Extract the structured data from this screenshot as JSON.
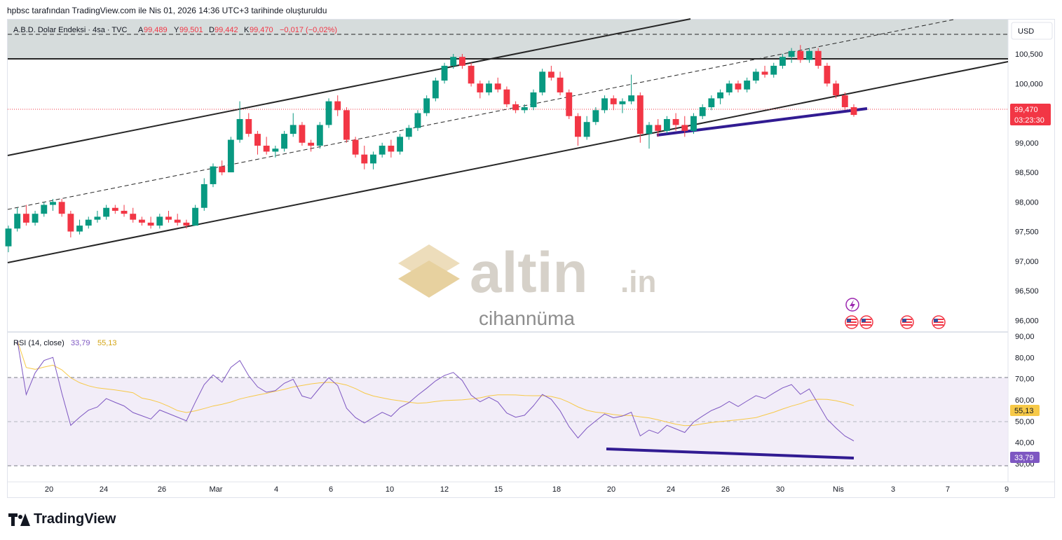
{
  "header": {
    "text": "hpbsc tarafından TradingView.com ile Nis 01, 2026 14:36 UTC+3 tarihinde oluşturuldu"
  },
  "legend": {
    "symbol": "A.B.D. Dolar Endeksi · 4sa · TVC",
    "o_label": "A",
    "o_value": "99,489",
    "h_label": "Y",
    "h_value": "99,501",
    "l_label": "D",
    "l_value": "99,442",
    "c_label": "K",
    "c_value": "99,470",
    "change": "−0,017 (−0,02%)"
  },
  "price_axis": {
    "currency": "USD",
    "ticks": [
      "100,500",
      "100,000",
      "99,500",
      "99,000",
      "98,500",
      "98,000",
      "97,500",
      "97,000",
      "96,500",
      "96,000"
    ],
    "last_price": "99,470",
    "countdown": "03:23:30"
  },
  "rsi": {
    "label": "RSI (14, close)",
    "value1": "33,79",
    "value2": "55,13",
    "ticks": [
      "90,00",
      "80,00",
      "70,00",
      "60,00",
      "50,00",
      "40,00",
      "30,00"
    ],
    "badge_rsi": "33,79",
    "badge_ma": "55,13"
  },
  "x_axis": {
    "ticks": [
      "20",
      "24",
      "26",
      "Mar",
      "4",
      "6",
      "10",
      "12",
      "15",
      "18",
      "20",
      "24",
      "26",
      "30",
      "Nis",
      "3",
      "7",
      "9"
    ]
  },
  "watermark": {
    "brand": "altin",
    "suffix": ".in",
    "sub": "cihannüma"
  },
  "footer": {
    "brand": "TradingView"
  },
  "colors": {
    "up": "#089981",
    "down": "#f23645",
    "rsi": "#7e57c2",
    "rsi_ma": "#f7c948",
    "trendline": "#311b92",
    "channel": "#262626"
  },
  "chart_data": {
    "type": "candlestick",
    "instrument": "A.B.D. Dolar Endeksi",
    "timeframe": "4sa",
    "ylim": [
      95.85,
      101.08
    ],
    "x_ticks": [
      "20",
      "24",
      "26",
      "Mar",
      "4",
      "6",
      "10",
      "12",
      "15",
      "18",
      "20",
      "24",
      "26",
      "30",
      "Nis",
      "3",
      "7",
      "9"
    ],
    "y_ticks": [
      96.0,
      96.5,
      97.0,
      97.5,
      98.0,
      98.5,
      99.0,
      99.5,
      100.0,
      100.5
    ],
    "last_close": 99.47,
    "ohlc_approx": [
      [
        97.25,
        97.6,
        97.15,
        97.55
      ],
      [
        97.55,
        97.9,
        97.5,
        97.8
      ],
      [
        97.8,
        97.95,
        97.6,
        97.65
      ],
      [
        97.65,
        97.85,
        97.6,
        97.8
      ],
      [
        97.8,
        98.0,
        97.75,
        97.95
      ],
      [
        97.95,
        98.05,
        97.85,
        98.0
      ],
      [
        98.0,
        98.05,
        97.75,
        97.8
      ],
      [
        97.8,
        97.85,
        97.4,
        97.5
      ],
      [
        97.5,
        97.7,
        97.45,
        97.6
      ],
      [
        97.6,
        97.75,
        97.55,
        97.7
      ],
      [
        97.7,
        97.85,
        97.65,
        97.75
      ],
      [
        97.75,
        97.95,
        97.7,
        97.9
      ],
      [
        97.9,
        97.95,
        97.8,
        97.85
      ],
      [
        97.85,
        97.95,
        97.75,
        97.8
      ],
      [
        97.8,
        97.9,
        97.65,
        97.7
      ],
      [
        97.7,
        97.75,
        97.6,
        97.65
      ],
      [
        97.65,
        97.75,
        97.55,
        97.6
      ],
      [
        97.6,
        97.8,
        97.55,
        97.75
      ],
      [
        97.75,
        97.85,
        97.65,
        97.7
      ],
      [
        97.7,
        97.8,
        97.6,
        97.65
      ],
      [
        97.65,
        97.7,
        97.55,
        97.6
      ],
      [
        97.6,
        97.95,
        97.6,
        97.9
      ],
      [
        97.9,
        98.4,
        97.85,
        98.3
      ],
      [
        98.3,
        98.65,
        98.25,
        98.6
      ],
      [
        98.6,
        98.7,
        98.45,
        98.5
      ],
      [
        98.5,
        99.1,
        98.5,
        99.05
      ],
      [
        99.05,
        99.7,
        99.0,
        99.4
      ],
      [
        99.4,
        99.5,
        99.1,
        99.15
      ],
      [
        99.15,
        99.2,
        98.8,
        98.95
      ],
      [
        98.95,
        99.1,
        98.8,
        98.85
      ],
      [
        98.85,
        98.95,
        98.75,
        98.9
      ],
      [
        98.9,
        99.2,
        98.85,
        99.15
      ],
      [
        99.15,
        99.5,
        99.1,
        99.3
      ],
      [
        99.3,
        99.35,
        98.95,
        99.0
      ],
      [
        99.0,
        99.05,
        98.85,
        98.95
      ],
      [
        98.95,
        99.35,
        98.9,
        99.3
      ],
      [
        99.3,
        99.75,
        99.25,
        99.7
      ],
      [
        99.7,
        99.8,
        99.45,
        99.55
      ],
      [
        99.55,
        99.6,
        99.0,
        99.05
      ],
      [
        99.05,
        99.1,
        98.75,
        98.8
      ],
      [
        98.8,
        98.95,
        98.55,
        98.65
      ],
      [
        98.65,
        98.85,
        98.55,
        98.8
      ],
      [
        98.8,
        99.0,
        98.75,
        98.95
      ],
      [
        98.95,
        99.05,
        98.75,
        98.85
      ],
      [
        98.85,
        99.15,
        98.8,
        99.1
      ],
      [
        99.1,
        99.3,
        99.05,
        99.25
      ],
      [
        99.25,
        99.55,
        99.2,
        99.5
      ],
      [
        99.5,
        99.8,
        99.45,
        99.75
      ],
      [
        99.75,
        100.1,
        99.7,
        100.05
      ],
      [
        100.05,
        100.35,
        100.0,
        100.3
      ],
      [
        100.3,
        100.5,
        100.25,
        100.45
      ],
      [
        100.45,
        100.5,
        100.25,
        100.3
      ],
      [
        100.3,
        100.35,
        99.95,
        100.0
      ],
      [
        100.0,
        100.05,
        99.75,
        99.85
      ],
      [
        99.85,
        100.05,
        99.8,
        100.0
      ],
      [
        100.0,
        100.1,
        99.85,
        99.9
      ],
      [
        99.9,
        99.95,
        99.6,
        99.65
      ],
      [
        99.65,
        99.7,
        99.5,
        99.55
      ],
      [
        99.55,
        99.65,
        99.5,
        99.6
      ],
      [
        99.6,
        99.9,
        99.55,
        99.85
      ],
      [
        99.85,
        100.25,
        99.8,
        100.2
      ],
      [
        100.2,
        100.3,
        100.05,
        100.1
      ],
      [
        100.1,
        100.2,
        99.8,
        99.85
      ],
      [
        99.85,
        99.9,
        99.4,
        99.45
      ],
      [
        99.45,
        99.5,
        98.95,
        99.1
      ],
      [
        99.1,
        99.45,
        99.05,
        99.35
      ],
      [
        99.35,
        99.6,
        99.3,
        99.55
      ],
      [
        99.55,
        99.8,
        99.5,
        99.75
      ],
      [
        99.75,
        99.8,
        99.55,
        99.65
      ],
      [
        99.65,
        99.75,
        99.5,
        99.7
      ],
      [
        99.7,
        100.15,
        99.65,
        99.8
      ],
      [
        99.8,
        99.85,
        99.0,
        99.15
      ],
      [
        99.15,
        99.35,
        98.9,
        99.3
      ],
      [
        99.3,
        99.4,
        99.1,
        99.2
      ],
      [
        99.2,
        99.45,
        99.15,
        99.4
      ],
      [
        99.4,
        99.5,
        99.2,
        99.3
      ],
      [
        99.3,
        99.45,
        99.1,
        99.2
      ],
      [
        99.2,
        99.5,
        99.15,
        99.45
      ],
      [
        99.45,
        99.65,
        99.4,
        99.6
      ],
      [
        99.6,
        99.8,
        99.55,
        99.75
      ],
      [
        99.75,
        99.9,
        99.65,
        99.85
      ],
      [
        99.85,
        100.05,
        99.8,
        100.0
      ],
      [
        100.0,
        100.05,
        99.85,
        99.9
      ],
      [
        99.9,
        100.1,
        99.85,
        100.05
      ],
      [
        100.05,
        100.25,
        100.0,
        100.2
      ],
      [
        100.2,
        100.3,
        100.1,
        100.15
      ],
      [
        100.15,
        100.35,
        100.1,
        100.3
      ],
      [
        100.3,
        100.5,
        100.25,
        100.45
      ],
      [
        100.45,
        100.6,
        100.35,
        100.55
      ],
      [
        100.55,
        100.65,
        100.35,
        100.4
      ],
      [
        100.4,
        100.6,
        100.35,
        100.55
      ],
      [
        100.55,
        100.6,
        100.25,
        100.3
      ],
      [
        100.3,
        100.35,
        99.95,
        100.0
      ],
      [
        100.0,
        100.05,
        99.75,
        99.8
      ],
      [
        99.8,
        99.85,
        99.55,
        99.6
      ],
      [
        99.6,
        99.65,
        99.44,
        99.47
      ]
    ],
    "trendlines": "ascending channel, dashed mid-channel line, horizontal resistance at ~100.3, support trendline at ~99.0-99.5",
    "rsi": {
      "period": 14,
      "source": "close",
      "last": 33.79,
      "ma_last": 55.13,
      "levels": [
        70,
        50,
        30
      ],
      "ylim": [
        27,
        91
      ]
    }
  }
}
